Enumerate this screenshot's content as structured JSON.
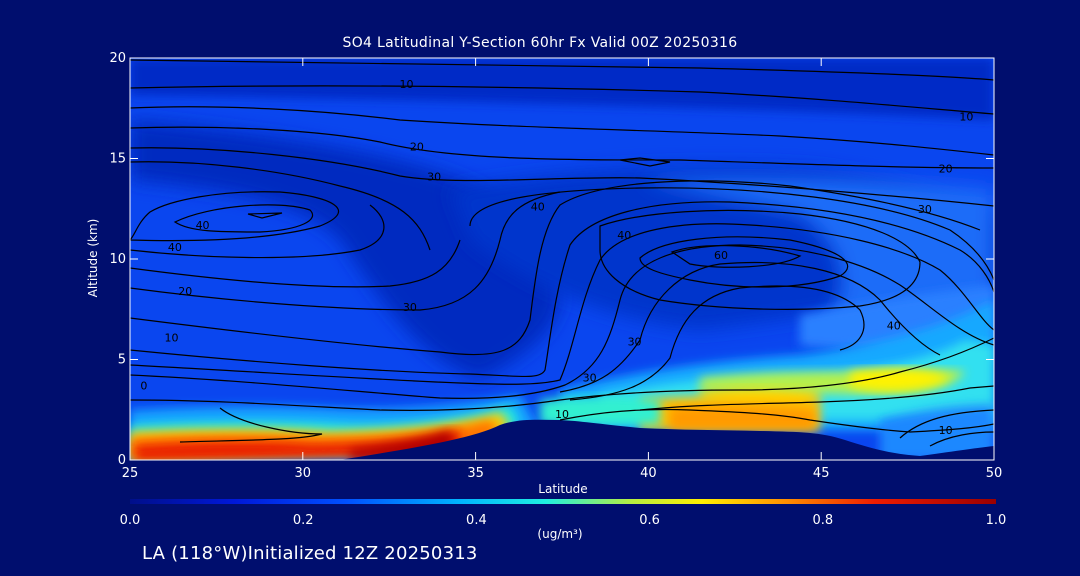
{
  "chart_data": {
    "type": "heatmap",
    "title": "SO4 Latitudinal Y-Section 60hr  Fx Valid 00Z 20250316",
    "xlabel": "Latitude",
    "ylabel": "Altitude (km)",
    "xlim": [
      25,
      50
    ],
    "ylim": [
      0,
      20
    ],
    "x_ticks": [
      "25",
      "30",
      "35",
      "40",
      "45",
      "50"
    ],
    "y_ticks": [
      "0",
      "5",
      "10",
      "15",
      "20"
    ],
    "colorbar": {
      "ticks": [
        "0.0",
        "0.2",
        "0.4",
        "0.6",
        "0.8",
        "1.0"
      ],
      "range": [
        0.0,
        1.0
      ],
      "units": "(ug/m³)"
    },
    "contour_labels": [
      {
        "text": "10",
        "lat": 33.0,
        "alt": 18.7
      },
      {
        "text": "10",
        "lat": 49.2,
        "alt": 17.1
      },
      {
        "text": "20",
        "lat": 33.3,
        "alt": 15.6
      },
      {
        "text": "20",
        "lat": 48.6,
        "alt": 14.5
      },
      {
        "text": "30",
        "lat": 33.8,
        "alt": 14.1
      },
      {
        "text": "30",
        "lat": 33.1,
        "alt": 7.6
      },
      {
        "text": "30",
        "lat": 48.0,
        "alt": 12.5
      },
      {
        "text": "40",
        "lat": 27.1,
        "alt": 11.7
      },
      {
        "text": "40",
        "lat": 26.3,
        "alt": 10.6
      },
      {
        "text": "40",
        "lat": 39.3,
        "alt": 11.2
      },
      {
        "text": "40",
        "lat": 47.1,
        "alt": 6.7
      },
      {
        "text": "60",
        "lat": 42.1,
        "alt": 10.2
      },
      {
        "text": "20",
        "lat": 26.6,
        "alt": 8.4
      },
      {
        "text": "10",
        "lat": 26.2,
        "alt": 6.1
      },
      {
        "text": "0",
        "lat": 25.4,
        "alt": 3.7
      },
      {
        "text": "30",
        "lat": 39.6,
        "alt": 5.9
      },
      {
        "text": "30",
        "lat": 38.3,
        "alt": 4.1
      },
      {
        "text": "10",
        "lat": 37.5,
        "alt": 2.3
      },
      {
        "text": "10",
        "lat": 48.6,
        "alt": 1.5
      },
      {
        "text": "40",
        "lat": 36.8,
        "alt": 12.6
      }
    ]
  },
  "footer": {
    "text": "LA (118°W)Initialized 12Z 20250313"
  }
}
